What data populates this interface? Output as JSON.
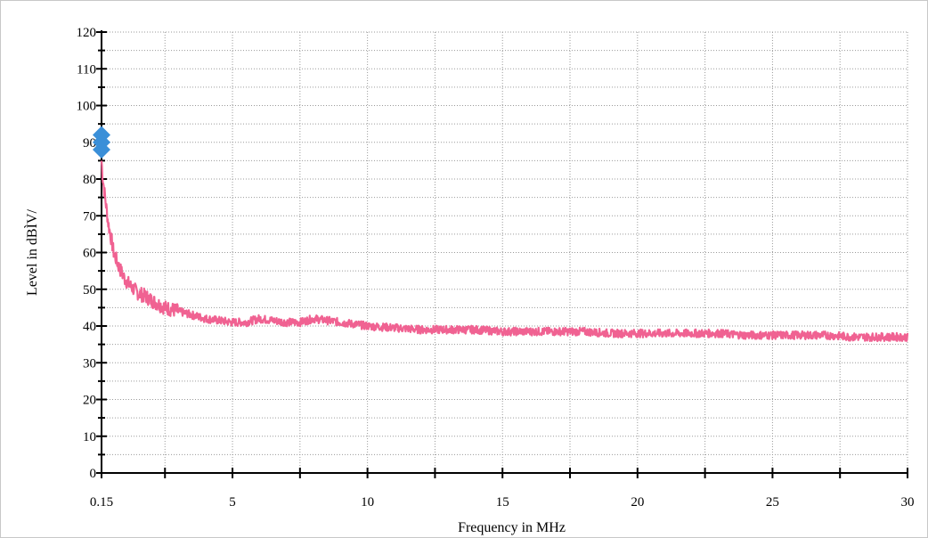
{
  "chart_data": {
    "type": "line",
    "title": "",
    "xlabel": "Frequency in MHz",
    "ylabel": "Level in dBÌV/",
    "xlim": [
      0.15,
      30
    ],
    "ylim": [
      0,
      120
    ],
    "x_ticks": [
      0.15,
      5,
      10,
      15,
      20,
      25,
      30
    ],
    "x_tick_labels": [
      "0.15",
      "5",
      "10",
      "15",
      "20",
      "25",
      "30"
    ],
    "y_ticks": [
      0,
      10,
      20,
      30,
      40,
      50,
      60,
      70,
      80,
      90,
      100,
      110,
      120
    ],
    "y_tick_labels": [
      "0",
      "10",
      "20",
      "30",
      "40",
      "50",
      "60",
      "70",
      "80",
      "90",
      "100",
      "110",
      "120"
    ],
    "grid": true,
    "grid_style": "dotted",
    "series": [
      {
        "color": "#f06292",
        "x": [
          0.15,
          0.2,
          0.3,
          0.4,
          0.5,
          0.6,
          0.8,
          1.0,
          1.2,
          1.5,
          1.8,
          2.0,
          2.5,
          3.0,
          3.5,
          4.0,
          4.5,
          5.0,
          5.5,
          6.0,
          6.5,
          7.0,
          7.5,
          8.0,
          8.5,
          9.0,
          9.5,
          10,
          11,
          12,
          13,
          14,
          15,
          16,
          17,
          18,
          19,
          20,
          21,
          22,
          23,
          24,
          25,
          26,
          27,
          28,
          29,
          30
        ],
        "y": [
          85,
          80,
          74,
          68,
          64,
          60,
          56,
          53,
          51,
          49,
          48,
          47,
          45,
          44,
          43,
          42,
          41.5,
          41,
          41,
          42,
          41.5,
          41,
          41,
          42,
          41.5,
          41,
          40.5,
          40,
          39.5,
          39,
          39,
          39,
          38.5,
          38.5,
          38.5,
          38.5,
          38,
          38,
          38,
          38,
          38,
          37.5,
          37.5,
          37.5,
          37.5,
          37,
          37,
          37
        ]
      }
    ],
    "markers": [
      {
        "x": 0.15,
        "y": 92,
        "color": "#3a8fd8",
        "shape": "diamond"
      },
      {
        "x": 0.15,
        "y": 90,
        "color": "#3a8fd8",
        "shape": "diamond"
      },
      {
        "x": 0.15,
        "y": 88,
        "color": "#3a8fd8",
        "shape": "diamond"
      }
    ]
  }
}
